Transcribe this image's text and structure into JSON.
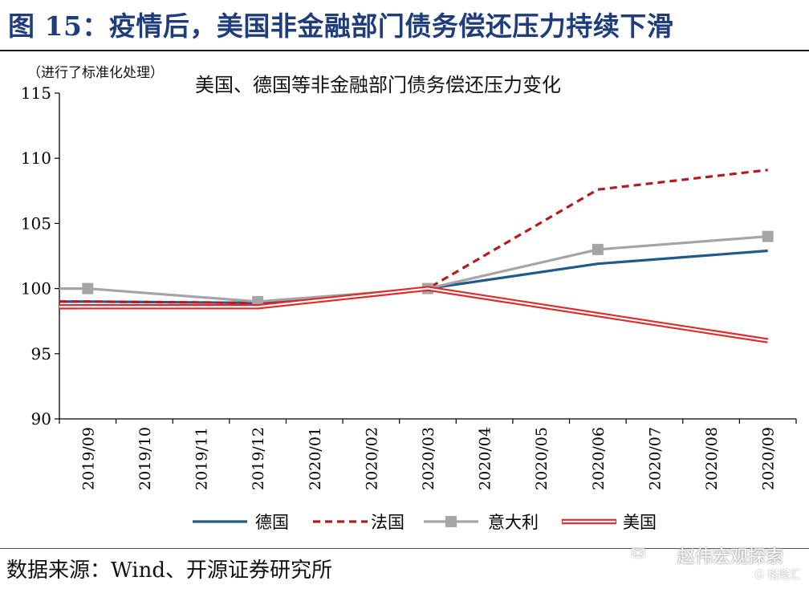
{
  "figure_title": "图 15：疫情后，美国非金融部门债务偿还压力持续下滑",
  "source_text": "数据来源：Wind、开源证券研究所",
  "watermark": "赵伟宏观探索",
  "watermark_sub": "G 格隆汇",
  "watermark_icon": "wechat-icon",
  "chart_data": {
    "type": "line",
    "title": "美国、德国等非金融部门债务偿还压力变化",
    "subtitle": "（进行了标准化处理）",
    "ylim": [
      90,
      115
    ],
    "yticks": [
      90,
      95,
      100,
      105,
      110,
      115
    ],
    "x": [
      "2019/09",
      "2019/10",
      "2019/11",
      "2019/12",
      "2020/01",
      "2020/02",
      "2020/03",
      "2020/04",
      "2020/05",
      "2020/06",
      "2020/07",
      "2020/08",
      "2020/09"
    ],
    "legend_position": "bottom",
    "grid": false,
    "series": [
      {
        "name": "德国",
        "color": "#1f5a8a",
        "style": "solid",
        "points": [
          [
            "2019/09",
            99.0
          ],
          [
            "2019/12",
            98.9
          ],
          [
            "2020/03",
            100.0
          ],
          [
            "2020/06",
            101.9
          ],
          [
            "2020/09",
            102.9
          ]
        ]
      },
      {
        "name": "法国",
        "color": "#b01c22",
        "style": "dashed",
        "points": [
          [
            "2019/09",
            99.0
          ],
          [
            "2019/12",
            98.9
          ],
          [
            "2020/03",
            100.0
          ],
          [
            "2020/06",
            107.6
          ],
          [
            "2020/09",
            109.1
          ]
        ]
      },
      {
        "name": "意大利",
        "color": "#a5a5a5",
        "style": "marker",
        "points": [
          [
            "2019/09",
            100.0
          ],
          [
            "2019/12",
            99.0
          ],
          [
            "2020/03",
            100.0
          ],
          [
            "2020/06",
            103.0
          ],
          [
            "2020/09",
            104.0
          ]
        ]
      },
      {
        "name": "美国",
        "color": "#e02a2a",
        "style": "double",
        "points": [
          [
            "2019/09",
            98.6
          ],
          [
            "2019/12",
            98.6
          ],
          [
            "2020/03",
            100.0
          ],
          [
            "2020/06",
            98.0
          ],
          [
            "2020/09",
            96.0
          ]
        ]
      }
    ]
  }
}
